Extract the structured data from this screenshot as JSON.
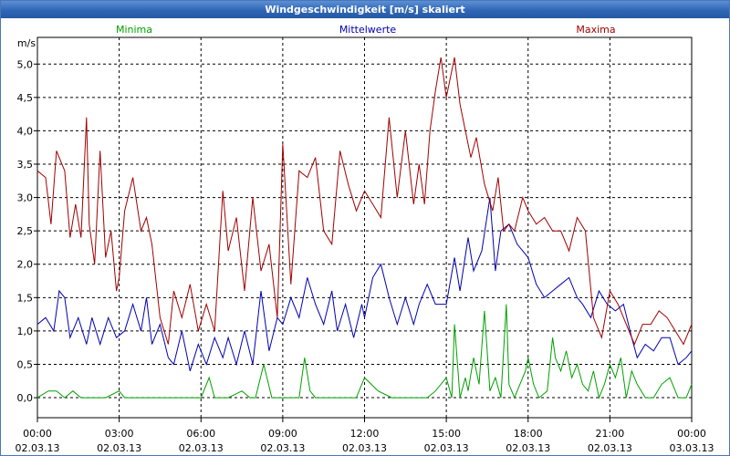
{
  "window": {
    "title": "Windgeschwindigkeit [m/s] skaliert"
  },
  "chart_data": {
    "type": "line",
    "title": "Windgeschwindigkeit [m/s] skaliert",
    "ylabel": "m/s",
    "xlabel": "",
    "ylim": [
      -0.3,
      5.4
    ],
    "xlim_hours": [
      0,
      24
    ],
    "grid": true,
    "y_ticks": [
      "0,0",
      "0,5",
      "1,0",
      "1,5",
      "2,0",
      "2,5",
      "3,0",
      "3,5",
      "4,0",
      "4,5",
      "5,0"
    ],
    "y_tick_values": [
      0,
      0.5,
      1.0,
      1.5,
      2.0,
      2.5,
      3.0,
      3.5,
      4.0,
      4.5,
      5.0
    ],
    "x_ticks": [
      {
        "time": "00:00",
        "date": "02.03.13"
      },
      {
        "time": "03:00",
        "date": "02.03.13"
      },
      {
        "time": "06:00",
        "date": "02.03.13"
      },
      {
        "time": "09:00",
        "date": "02.03.13"
      },
      {
        "time": "12:00",
        "date": "02.03.13"
      },
      {
        "time": "15:00",
        "date": "02.03.13"
      },
      {
        "time": "18:00",
        "date": "02.03.13"
      },
      {
        "time": "21:00",
        "date": "02.03.13"
      },
      {
        "time": "00:00",
        "date": "03.03.13"
      }
    ],
    "x_tick_hours": [
      0,
      3,
      6,
      9,
      12,
      15,
      18,
      21,
      24
    ],
    "series": [
      {
        "name": "Minima",
        "color": "#00a000",
        "legend_position": "left",
        "x": [
          0,
          0.4,
          0.7,
          1.0,
          1.3,
          1.6,
          2.0,
          2.5,
          3.0,
          3.2,
          3.5,
          4.0,
          5.0,
          6.0,
          6.3,
          6.5,
          6.8,
          7.0,
          7.5,
          7.8,
          8.0,
          8.3,
          8.6,
          8.9,
          9.0,
          9.3,
          9.6,
          9.8,
          10.0,
          10.2,
          10.5,
          10.8,
          11.0,
          11.5,
          11.7,
          12.0,
          12.5,
          13.0,
          13.5,
          14.0,
          14.3,
          14.6,
          15.0,
          15.2,
          15.3,
          15.5,
          15.7,
          15.8,
          16.0,
          16.2,
          16.4,
          16.6,
          16.8,
          17.0,
          17.2,
          17.3,
          17.5,
          17.7,
          17.9,
          18.0,
          18.2,
          18.4,
          18.7,
          18.9,
          19.0,
          19.2,
          19.4,
          19.6,
          19.8,
          20.0,
          20.2,
          20.4,
          20.6,
          20.8,
          21.0,
          21.2,
          21.4,
          21.6,
          21.8,
          22.0,
          22.3,
          22.6,
          22.9,
          23.2,
          23.5,
          23.8,
          24.0
        ],
        "y": [
          0,
          0.1,
          0.1,
          0,
          0.1,
          0,
          0,
          0,
          0.1,
          0,
          0,
          0,
          0,
          0,
          0.3,
          0,
          0,
          0,
          0.1,
          0,
          0,
          0.5,
          0,
          0,
          0,
          0,
          0,
          0.6,
          0.1,
          0,
          0,
          0,
          0,
          0,
          0,
          0.3,
          0.1,
          0,
          0,
          0,
          0,
          0.1,
          0.3,
          0,
          1.1,
          0,
          0.3,
          0.1,
          0.6,
          0.2,
          1.3,
          0.1,
          0.3,
          0,
          1.4,
          0.2,
          0,
          0.2,
          0.4,
          0.6,
          0.2,
          0,
          0.1,
          0.9,
          0.6,
          0.4,
          0.7,
          0.3,
          0.5,
          0.2,
          0.1,
          0.4,
          0,
          0.2,
          0.5,
          0.3,
          0.6,
          0,
          0.4,
          0.2,
          0,
          0,
          0.2,
          0.3,
          0,
          0,
          0.2
        ]
      },
      {
        "name": "Mittelwerte",
        "color": "#0000b0",
        "legend_position": "center",
        "x": [
          0,
          0.3,
          0.6,
          0.8,
          1.0,
          1.2,
          1.5,
          1.8,
          2.0,
          2.3,
          2.6,
          2.9,
          3.2,
          3.5,
          3.8,
          4.0,
          4.2,
          4.5,
          4.8,
          5.0,
          5.3,
          5.6,
          5.9,
          6.2,
          6.5,
          6.8,
          7.0,
          7.3,
          7.6,
          7.9,
          8.2,
          8.5,
          8.8,
          9.0,
          9.3,
          9.6,
          9.9,
          10.2,
          10.5,
          10.8,
          11.0,
          11.3,
          11.6,
          11.9,
          12.0,
          12.3,
          12.6,
          12.9,
          13.2,
          13.5,
          13.8,
          14.0,
          14.3,
          14.6,
          15.0,
          15.3,
          15.5,
          15.8,
          16.0,
          16.3,
          16.6,
          16.8,
          17.0,
          17.3,
          17.6,
          17.8,
          18.0,
          18.3,
          18.6,
          18.9,
          19.2,
          19.5,
          19.8,
          20.0,
          20.3,
          20.6,
          20.9,
          21.2,
          21.5,
          21.8,
          22.0,
          22.3,
          22.6,
          22.9,
          23.2,
          23.5,
          23.8,
          24.0
        ],
        "y": [
          1.1,
          1.2,
          1.0,
          1.6,
          1.5,
          0.9,
          1.2,
          0.8,
          1.2,
          0.8,
          1.2,
          0.9,
          1.0,
          1.4,
          1.0,
          1.5,
          0.8,
          1.1,
          0.6,
          0.5,
          1.0,
          0.4,
          0.8,
          0.5,
          0.9,
          0.6,
          0.9,
          0.5,
          1.0,
          0.5,
          1.6,
          0.7,
          1.2,
          1.1,
          1.5,
          1.2,
          1.8,
          1.4,
          1.1,
          1.6,
          1.0,
          1.4,
          0.9,
          1.4,
          1.2,
          1.8,
          2.0,
          1.5,
          1.1,
          1.5,
          1.1,
          1.4,
          1.7,
          1.4,
          1.4,
          2.1,
          1.6,
          2.4,
          1.9,
          2.2,
          3.0,
          1.9,
          2.5,
          2.6,
          2.3,
          2.2,
          2.1,
          1.7,
          1.5,
          1.6,
          1.7,
          1.8,
          1.5,
          1.4,
          1.2,
          1.6,
          1.4,
          1.3,
          1.4,
          0.9,
          0.6,
          0.8,
          0.7,
          0.9,
          0.9,
          0.5,
          0.6,
          0.7
        ]
      },
      {
        "name": "Maxima",
        "color": "#a00000",
        "legend_position": "right",
        "x": [
          0,
          0.3,
          0.5,
          0.7,
          1.0,
          1.2,
          1.4,
          1.6,
          1.8,
          1.9,
          2.1,
          2.3,
          2.5,
          2.7,
          2.9,
          3.0,
          3.2,
          3.5,
          3.8,
          4.0,
          4.2,
          4.5,
          4.8,
          5.0,
          5.3,
          5.6,
          5.9,
          6.2,
          6.5,
          6.8,
          7.0,
          7.3,
          7.6,
          7.9,
          8.2,
          8.5,
          8.8,
          9.0,
          9.3,
          9.6,
          9.9,
          10.2,
          10.5,
          10.8,
          11.1,
          11.4,
          11.7,
          12.0,
          12.3,
          12.6,
          12.9,
          13.2,
          13.5,
          13.8,
          14.0,
          14.2,
          14.4,
          14.6,
          14.8,
          15.0,
          15.3,
          15.5,
          15.7,
          15.9,
          16.1,
          16.4,
          16.7,
          16.9,
          17.1,
          17.3,
          17.5,
          17.8,
          18.0,
          18.3,
          18.6,
          18.9,
          19.2,
          19.5,
          19.8,
          20.1,
          20.4,
          20.7,
          21.0,
          21.3,
          21.6,
          21.9,
          22.2,
          22.5,
          22.8,
          23.1,
          23.4,
          23.7,
          24.0
        ],
        "y": [
          3.4,
          3.3,
          2.6,
          3.7,
          3.4,
          2.4,
          2.9,
          2.4,
          4.2,
          2.6,
          2.0,
          3.7,
          2.1,
          2.5,
          1.6,
          1.8,
          2.8,
          3.3,
          2.5,
          2.7,
          2.3,
          1.2,
          0.8,
          1.6,
          1.2,
          1.7,
          1.0,
          1.4,
          1.0,
          3.1,
          2.2,
          2.7,
          1.6,
          3.0,
          1.9,
          2.3,
          1.2,
          3.8,
          1.7,
          3.4,
          3.3,
          3.6,
          2.5,
          2.3,
          3.7,
          3.2,
          2.8,
          3.1,
          2.9,
          2.7,
          4.2,
          3.0,
          4.0,
          2.9,
          3.5,
          2.9,
          4.0,
          4.6,
          5.1,
          4.5,
          5.1,
          4.4,
          4.0,
          3.6,
          3.9,
          3.2,
          2.8,
          3.3,
          2.5,
          2.6,
          2.5,
          3.0,
          2.8,
          2.6,
          2.7,
          2.5,
          2.5,
          2.2,
          2.7,
          2.5,
          1.2,
          0.9,
          1.6,
          1.4,
          1.1,
          0.8,
          1.1,
          1.1,
          1.3,
          1.2,
          1.0,
          0.8,
          1.1
        ]
      }
    ]
  }
}
